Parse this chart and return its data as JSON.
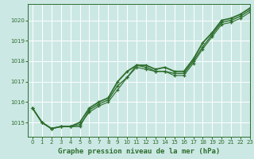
{
  "title": "Graphe pression niveau de la mer (hPa)",
  "bg_color": "#cce8e4",
  "grid_color": "#ffffff",
  "line_color": "#2d6e2d",
  "marker_color": "#2d6e2d",
  "xlim": [
    -0.5,
    23
  ],
  "ylim": [
    1014.3,
    1020.8
  ],
  "yticks": [
    1015,
    1016,
    1017,
    1018,
    1019,
    1020
  ],
  "xticks": [
    0,
    1,
    2,
    3,
    4,
    5,
    6,
    7,
    8,
    9,
    10,
    11,
    12,
    13,
    14,
    15,
    16,
    17,
    18,
    19,
    20,
    21,
    22,
    23
  ],
  "series": [
    [
      1015.7,
      1015.0,
      1014.7,
      1014.8,
      1014.8,
      1014.8,
      1015.6,
      1015.9,
      1016.1,
      1016.8,
      1017.2,
      1017.8,
      1017.7,
      1017.5,
      1017.5,
      1017.4,
      1017.4,
      1018.0,
      1018.7,
      1019.3,
      1019.9,
      1020.0,
      1020.2,
      1020.5
    ],
    [
      1015.7,
      1015.0,
      1014.7,
      1014.8,
      1014.8,
      1015.0,
      1015.7,
      1016.0,
      1016.2,
      1017.0,
      1017.5,
      1017.8,
      1017.8,
      1017.6,
      1017.7,
      1017.5,
      1017.5,
      1018.1,
      1018.9,
      1019.4,
      1020.0,
      1020.1,
      1020.3,
      1020.6
    ],
    [
      1015.7,
      1015.0,
      1014.7,
      1014.8,
      1014.8,
      1014.9,
      1015.5,
      1015.8,
      1016.0,
      1016.6,
      1017.2,
      1017.7,
      1017.6,
      1017.5,
      1017.5,
      1017.3,
      1017.3,
      1017.9,
      1018.6,
      1019.2,
      1019.8,
      1019.9,
      1020.1,
      1020.4
    ]
  ]
}
